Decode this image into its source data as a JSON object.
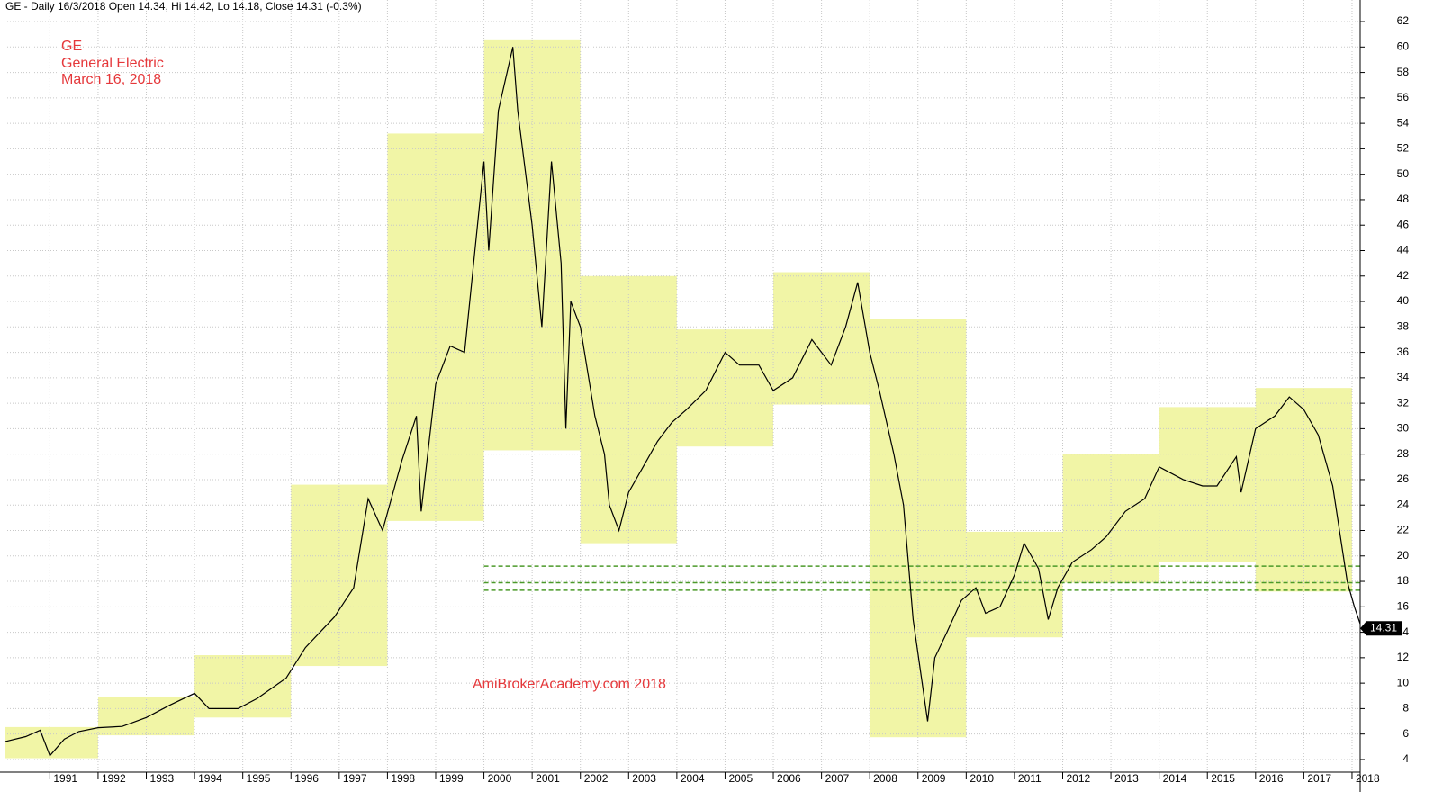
{
  "chart_data": {
    "type": "line",
    "title": "GE - Daily 16/3/2018 Open 14.34, Hi 14.42, Lo 14.18, Close 14.31 (-0.3%)",
    "annotations": [
      "GE",
      "General Electric",
      "March 16, 2018",
      "AmiBrokerAcademy.com  2018"
    ],
    "last_value": 14.31,
    "xlim": [
      1990.06,
      2018.15
    ],
    "xticks": [
      1991,
      1992,
      1993,
      1994,
      1995,
      1996,
      1997,
      1998,
      1999,
      2000,
      2001,
      2002,
      2003,
      2004,
      2005,
      2006,
      2007,
      2008,
      2009,
      2010,
      2011,
      2012,
      2013,
      2014,
      2015,
      2016,
      2017,
      2018
    ],
    "ylim": [
      1.45,
      63.7
    ],
    "yticks": [
      4,
      6,
      8,
      10,
      12,
      14,
      16,
      18,
      20,
      22,
      24,
      26,
      28,
      30,
      32,
      34,
      36,
      38,
      40,
      42,
      44,
      46,
      48,
      50,
      52,
      54,
      56,
      58,
      60,
      62
    ],
    "grid": true,
    "x": [
      1990.06,
      1990.5,
      1990.8,
      1991.0,
      1991.3,
      1991.6,
      1992.0,
      1992.5,
      1993.0,
      1993.5,
      1994.0,
      1994.3,
      1994.9,
      1995.3,
      1995.9,
      1996.3,
      1996.9,
      1997.3,
      1997.6,
      1997.9,
      1998.3,
      1998.6,
      1998.7,
      1999.0,
      1999.3,
      1999.6,
      2000.0,
      2000.1,
      2000.3,
      2000.6,
      2000.7,
      2001.0,
      2001.2,
      2001.4,
      2001.6,
      2001.7,
      2001.8,
      2002.0,
      2002.3,
      2002.5,
      2002.6,
      2002.8,
      2003.0,
      2003.3,
      2003.6,
      2003.9,
      2004.2,
      2004.6,
      2005.0,
      2005.3,
      2005.7,
      2006.0,
      2006.4,
      2006.8,
      2007.2,
      2007.5,
      2007.75,
      2008.0,
      2008.2,
      2008.5,
      2008.7,
      2008.9,
      2009.2,
      2009.35,
      2009.6,
      2009.9,
      2010.2,
      2010.4,
      2010.7,
      2011.0,
      2011.2,
      2011.5,
      2011.7,
      2011.9,
      2012.2,
      2012.6,
      2012.9,
      2013.3,
      2013.7,
      2014.0,
      2014.5,
      2014.9,
      2015.2,
      2015.6,
      2015.7,
      2016.0,
      2016.4,
      2016.7,
      2017.0,
      2017.3,
      2017.6,
      2017.9,
      2018.05,
      2018.2
    ],
    "series": [
      {
        "name": "GE",
        "color": "#000000",
        "values": [
          5.4,
          5.8,
          6.3,
          4.3,
          5.6,
          6.2,
          6.5,
          6.6,
          7.3,
          8.3,
          9.2,
          8.0,
          8.0,
          8.8,
          10.4,
          12.8,
          15.2,
          17.5,
          24.5,
          22.0,
          27.5,
          31,
          23.5,
          33.5,
          36.5,
          36.0,
          51,
          44,
          55,
          60,
          55,
          46,
          38,
          51,
          43,
          30,
          40,
          38,
          31,
          28,
          24,
          22,
          25,
          27,
          29,
          30.5,
          31.5,
          33,
          36,
          35,
          35,
          33,
          34,
          37,
          35,
          38,
          41.5,
          36,
          33,
          28,
          24,
          15,
          7,
          12,
          14,
          16.5,
          17.5,
          15.5,
          16,
          18.5,
          21,
          19,
          15,
          17.5,
          19.5,
          20.5,
          21.5,
          23.5,
          24.5,
          27,
          26,
          25.5,
          25.5,
          27.8,
          25,
          30,
          31,
          32.5,
          31.5,
          29.5,
          25.5,
          18,
          16,
          14.31
        ]
      }
    ],
    "box_color": "#f1f5a6",
    "boxes": [
      {
        "x0": 1990,
        "x1": 1992,
        "low": 4.1,
        "high": 6.55
      },
      {
        "x0": 1992,
        "x1": 1994,
        "low": 5.9,
        "high": 8.95
      },
      {
        "x0": 1994,
        "x1": 1996,
        "low": 7.3,
        "high": 12.2
      },
      {
        "x0": 1996,
        "x1": 1998,
        "low": 11.35,
        "high": 25.6
      },
      {
        "x0": 1998,
        "x1": 2000,
        "low": 22.75,
        "high": 53.2
      },
      {
        "x0": 2000,
        "x1": 2002,
        "low": 28.3,
        "high": 60.6
      },
      {
        "x0": 2002,
        "x1": 2004,
        "low": 21,
        "high": 42
      },
      {
        "x0": 2004,
        "x1": 2006,
        "low": 28.6,
        "high": 37.8
      },
      {
        "x0": 2006,
        "x1": 2008,
        "low": 31.9,
        "high": 42.3
      },
      {
        "x0": 2008,
        "x1": 2010,
        "low": 5.75,
        "high": 38.6
      },
      {
        "x0": 2010,
        "x1": 2012,
        "low": 13.6,
        "high": 21.9
      },
      {
        "x0": 2012,
        "x1": 2014,
        "low": 17.9,
        "high": 28
      },
      {
        "x0": 2014,
        "x1": 2016,
        "low": 19.5,
        "high": 31.7
      },
      {
        "x0": 2016,
        "x1": 2018,
        "low": 17.2,
        "high": 33.2
      }
    ],
    "level_color": "#4c9a2a",
    "levels": [
      19.2,
      17.9,
      17.3
    ]
  }
}
